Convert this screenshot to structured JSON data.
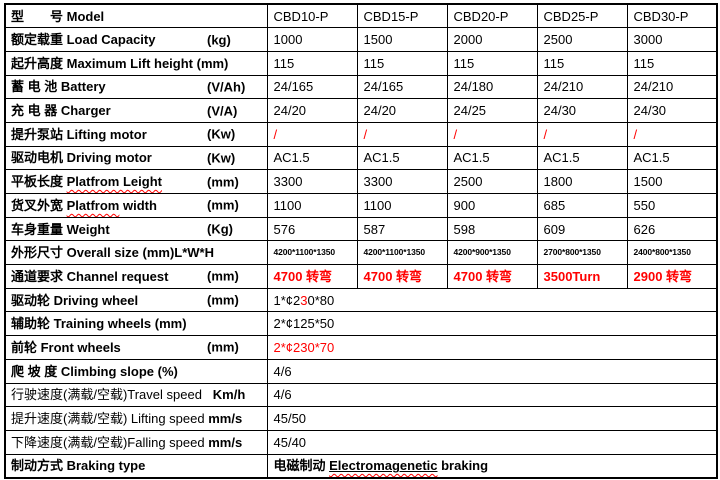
{
  "meta": {
    "accent_red": "#ff0000",
    "border_color": "#000000",
    "background": "#ffffff"
  },
  "table": {
    "rows": [
      {
        "key": "model",
        "label": [
          {
            "t": "型　　号 Model",
            "b": true
          }
        ],
        "unit": "",
        "values": [
          "CBD10-P",
          "CBD15-P",
          "CBD20-P",
          "CBD25-P",
          "CBD30-P"
        ]
      },
      {
        "key": "load-capacity",
        "label": [
          {
            "t": "额定载重 Load Capacity",
            "b": true
          }
        ],
        "unit": "(kg)",
        "values": [
          "1000",
          "1500",
          "2000",
          "2500",
          "3000"
        ]
      },
      {
        "key": "lift-height",
        "label": [
          {
            "t": "起升高度 Maximum Lift height (mm)",
            "b": true
          }
        ],
        "unit": "",
        "values": [
          "115",
          "115",
          "115",
          "115",
          "115"
        ]
      },
      {
        "key": "battery",
        "label": [
          {
            "t": "蓄 电 池 Battery",
            "b": true
          }
        ],
        "unit": "(V/Ah)",
        "values": [
          "24/165",
          "24/165",
          "24/180",
          "24/210",
          "24/210"
        ]
      },
      {
        "key": "charger",
        "label": [
          {
            "t": "充 电 器 Charger",
            "b": true
          }
        ],
        "unit": "(V/A)",
        "values": [
          "24/20",
          "24/20",
          "24/25",
          "24/30",
          "24/30"
        ]
      },
      {
        "key": "lifting-motor",
        "label": [
          {
            "t": "提升泵站 Lifting motor",
            "b": true
          }
        ],
        "unit": "(Kw)",
        "values": [
          "/",
          "/",
          "/",
          "/",
          "/"
        ],
        "values_color": "#ff0000"
      },
      {
        "key": "driving-motor",
        "label": [
          {
            "t": "驱动电机 Driving motor",
            "b": true
          }
        ],
        "unit": "(Kw)",
        "values": [
          "AC1.5",
          "AC1.5",
          "AC1.5",
          "AC1.5",
          "AC1.5"
        ]
      },
      {
        "key": "platform-length",
        "label": [
          {
            "t": "平板长度 ",
            "b": true
          },
          {
            "t": "Platfrom Leight",
            "b": true,
            "wavy": true
          }
        ],
        "unit": "(mm)",
        "values": [
          "3300",
          "3300",
          "2500",
          "1800",
          "1500"
        ]
      },
      {
        "key": "platform-width",
        "label": [
          {
            "t": "货叉外宽 ",
            "b": true
          },
          {
            "t": "Platfrom",
            "b": true,
            "wavy": true
          },
          {
            "t": " width",
            "b": true
          }
        ],
        "unit": "(mm)",
        "values": [
          "1100",
          "1100",
          "900",
          "685",
          "550"
        ]
      },
      {
        "key": "weight",
        "label": [
          {
            "t": "车身重量 Weight",
            "b": true
          }
        ],
        "unit": "(Kg)",
        "values": [
          "576",
          "587",
          "598",
          "609",
          "626"
        ]
      },
      {
        "key": "overall-size",
        "label": [
          {
            "t": "外形尺寸 Overall size (mm)L*W*H",
            "b": true
          }
        ],
        "unit": "",
        "values": [
          "4200*1100*1350",
          "4200*1100*1350",
          "4200*900*1350",
          "2700*800*1350",
          "2400*800*1350"
        ],
        "values_small": true,
        "values_bold": true
      },
      {
        "key": "channel-request",
        "label": [
          {
            "t": "通道要求 Channel request",
            "b": true
          }
        ],
        "unit": "(mm)",
        "values": [
          "4700 转弯",
          "4700 转弯",
          "4700 转弯",
          "3500Turn",
          "2900 转弯"
        ],
        "values_color": "#ff0000",
        "values_bold": true
      },
      {
        "key": "driving-wheel",
        "label": [
          {
            "t": "驱动轮 Driving wheel",
            "b": true
          }
        ],
        "unit": "(mm)",
        "merged": [
          {
            "t": "1*¢2"
          },
          {
            "t": "3",
            "c": "#ff0000"
          },
          {
            "t": "0*80"
          }
        ]
      },
      {
        "key": "training-wheels",
        "label": [
          {
            "t": "辅助轮 Training wheels (mm)",
            "b": true
          }
        ],
        "unit": "",
        "merged": [
          {
            "t": "2*¢125*50"
          }
        ]
      },
      {
        "key": "front-wheels",
        "label": [
          {
            "t": "前轮 Front wheels",
            "b": true
          }
        ],
        "unit": "(mm)",
        "merged": [
          {
            "t": "2*¢230*70",
            "c": "#ff0000"
          }
        ]
      },
      {
        "key": "climbing-slope",
        "label": [
          {
            "t": "爬 坡 度 Climbing slope (%)",
            "b": true
          }
        ],
        "unit": "",
        "merged": [
          {
            "t": "4/6"
          }
        ]
      },
      {
        "key": "travel-speed",
        "label": [
          {
            "t": "行驶速度(满载/空载)Travel speed"
          },
          {
            "t": "   Km/h",
            "b": true
          }
        ],
        "unit": "",
        "merged": [
          {
            "t": "4/6"
          }
        ]
      },
      {
        "key": "lifting-speed",
        "label": [
          {
            "t": "提升速度(满载/空载) Lifting speed "
          },
          {
            "t": "mm/s",
            "b": true
          }
        ],
        "unit": "",
        "merged": [
          {
            "t": "45/50"
          }
        ]
      },
      {
        "key": "falling-speed",
        "label": [
          {
            "t": "下降速度(满载/空载)Falling speed "
          },
          {
            "t": "mm/s",
            "b": true
          }
        ],
        "unit": "",
        "merged": [
          {
            "t": "45/40"
          }
        ]
      },
      {
        "key": "braking-type",
        "label": [
          {
            "t": "制动方式 Braking type",
            "b": true
          }
        ],
        "unit": "",
        "merged": [
          {
            "t": "电磁制动 ",
            "b": true
          },
          {
            "t": "Electromagenetic",
            "b": true,
            "wavy": true,
            "u": true
          },
          {
            "t": " braking",
            "b": true
          }
        ]
      }
    ]
  }
}
